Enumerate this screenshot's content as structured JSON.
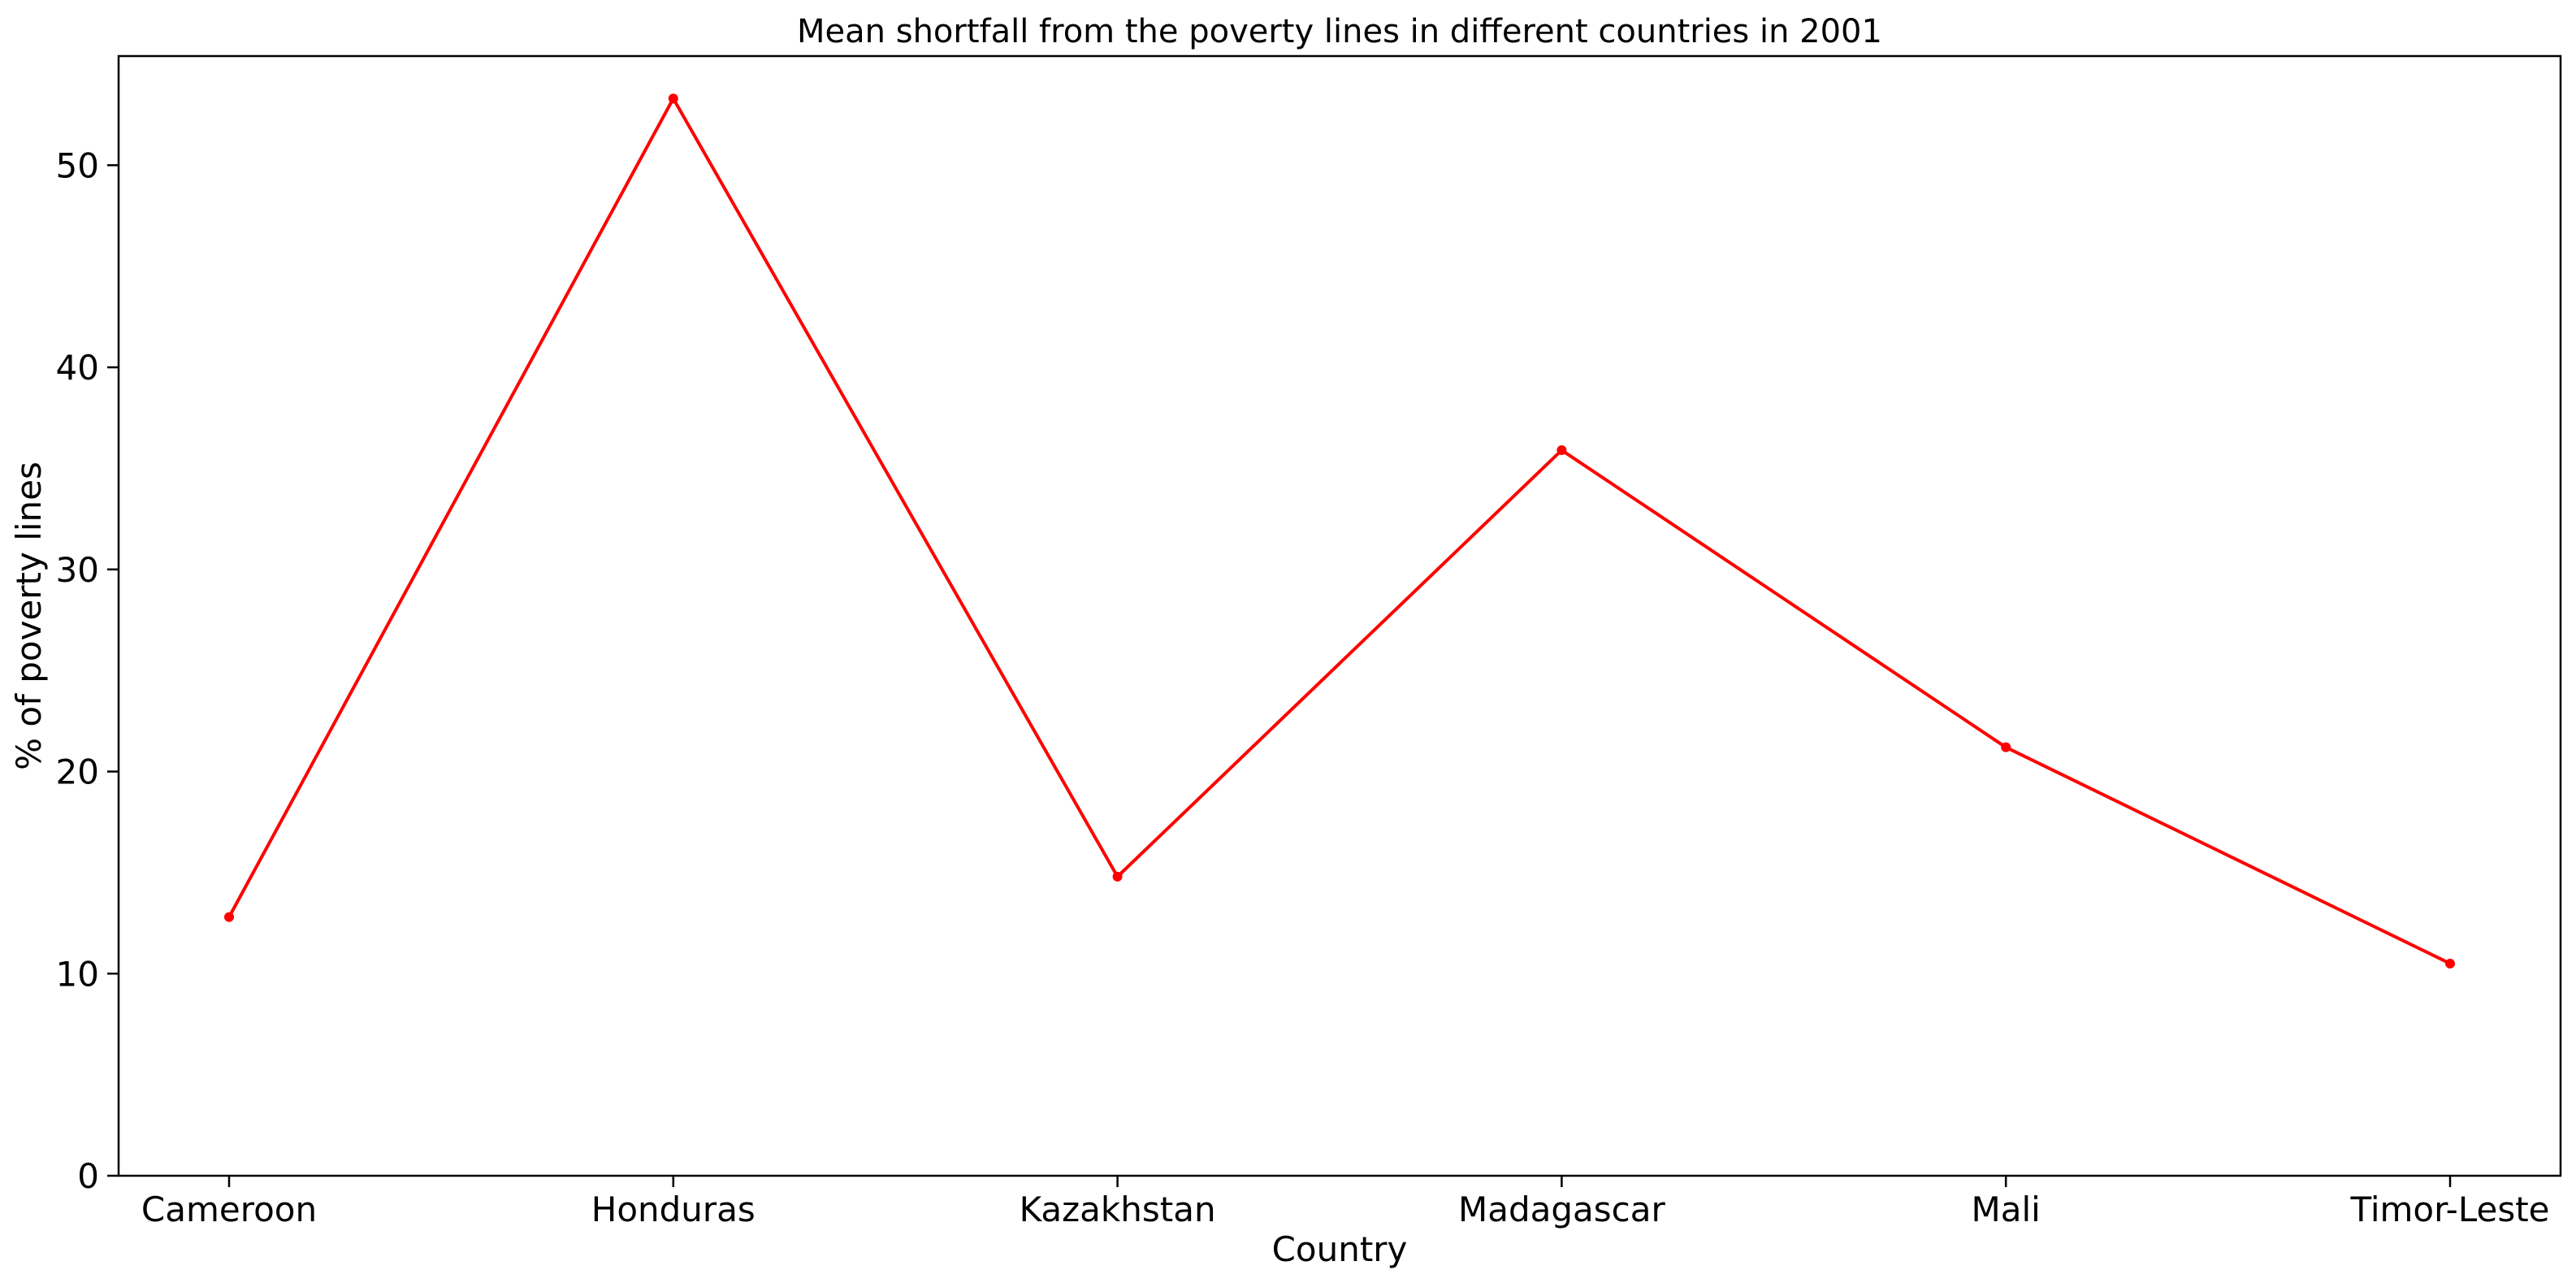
{
  "chart_data": {
    "type": "line",
    "title": "Mean shortfall from the poverty lines in different countries in 2001",
    "xlabel": "Country",
    "ylabel": "% of poverty lines",
    "categories": [
      "Cameroon",
      "Honduras",
      "Kazakhstan",
      "Madagascar",
      "Mali",
      "Timor-Leste"
    ],
    "series": [
      {
        "values": [
          12.8,
          53.3,
          14.8,
          35.9,
          21.2,
          10.5
        ]
      }
    ],
    "yticks": [
      0,
      10,
      20,
      30,
      40,
      50
    ],
    "ylim": [
      0,
      55.4
    ],
    "grid": false,
    "legend": "none",
    "colors": {
      "line": "#ff0000",
      "marker": "#ff0000",
      "axes": "#000000"
    }
  }
}
